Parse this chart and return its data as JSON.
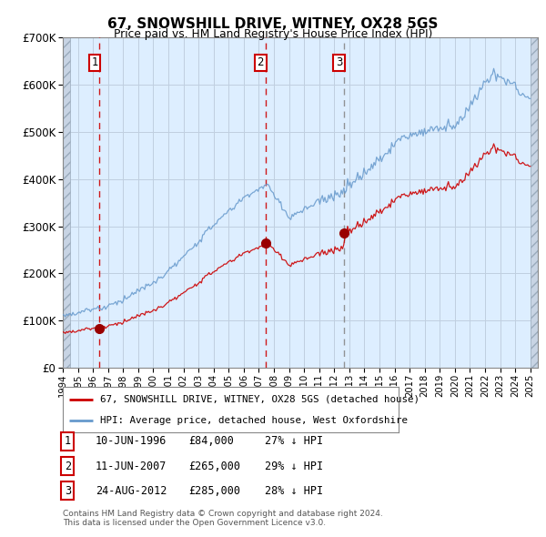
{
  "title": "67, SNOWSHILL DRIVE, WITNEY, OX28 5GS",
  "subtitle": "Price paid vs. HM Land Registry's House Price Index (HPI)",
  "property_label": "67, SNOWSHILL DRIVE, WITNEY, OX28 5GS (detached house)",
  "hpi_label": "HPI: Average price, detached house, West Oxfordshire",
  "footer": "Contains HM Land Registry data © Crown copyright and database right 2024.\nThis data is licensed under the Open Government Licence v3.0.",
  "transactions": [
    {
      "num": 1,
      "date": "10-JUN-1996",
      "price": "£84,000",
      "hpi_note": "27% ↓ HPI",
      "year": 1996.44,
      "vline_color": "#cc0000",
      "vline_style": "dashed"
    },
    {
      "num": 2,
      "date": "11-JUN-2007",
      "price": "£265,000",
      "hpi_note": "29% ↓ HPI",
      "year": 2007.44,
      "vline_color": "#cc0000",
      "vline_style": "dashed"
    },
    {
      "num": 3,
      "date": "24-AUG-2012",
      "price": "£285,000",
      "hpi_note": "28% ↓ HPI",
      "year": 2012.64,
      "vline_color": "#888888",
      "vline_style": "dashed"
    }
  ],
  "transaction_values": [
    84000,
    265000,
    285000
  ],
  "ylim": [
    0,
    700000
  ],
  "xlim_start": 1994.0,
  "xlim_end": 2025.5,
  "hatch_left_end": 1994.5,
  "hatch_right_start": 2025.0,
  "background_color": "#ddeeff",
  "grid_color": "#c8d8e8",
  "property_line_color": "#cc0000",
  "hpi_line_color": "#6699cc",
  "box_color": "#cc0000",
  "fig_bg": "#ffffff"
}
